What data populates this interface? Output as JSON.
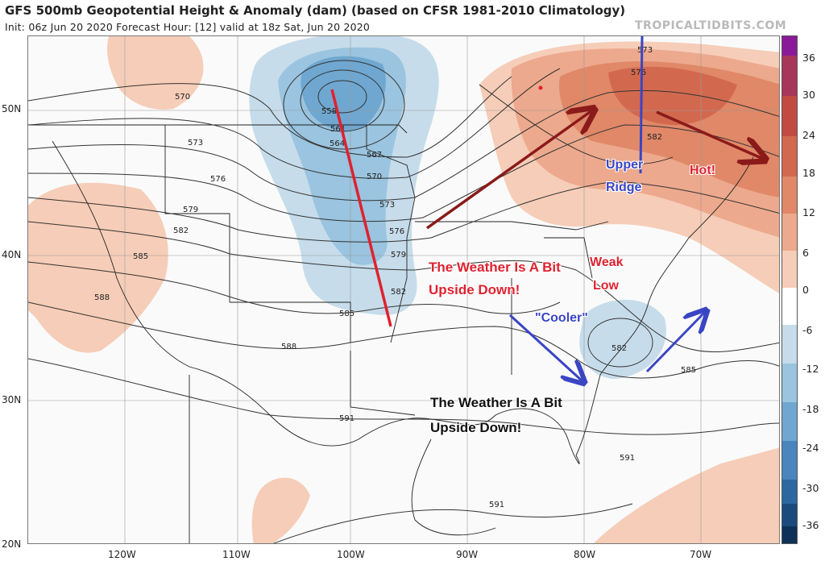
{
  "header": {
    "title": "GFS 500mb Geopotential Height & Anomaly (dam) (based on CFSR 1981-2010 Climatology)",
    "subtitle": "Init: 06z Jun 20 2020   Forecast Hour: [12]   valid at 18z Sat, Jun 20 2020",
    "site": "TROPICALTIDBITS.COM"
  },
  "axes": {
    "lat_labels": [
      "50N",
      "40N",
      "30N",
      "20N"
    ],
    "lon_labels": [
      "120W",
      "110W",
      "100W",
      "90W",
      "80W",
      "70W"
    ]
  },
  "colorbar": {
    "labels": [
      "36",
      "30",
      "24",
      "18",
      "12",
      "6",
      "0",
      "-6",
      "-12",
      "-18",
      "-24",
      "-30",
      "-36"
    ],
    "colors": [
      "#8b1a9a",
      "#a8365a",
      "#c14a43",
      "#d2694f",
      "#e08868",
      "#eca98d",
      "#f6cdb8",
      "#ffffff",
      "#c6dcea",
      "#9ac4df",
      "#6fa7d0",
      "#4a86bd",
      "#2c679f",
      "#1a4b7c",
      "#0e3157"
    ]
  },
  "contour_labels": [
    "570",
    "573",
    "576",
    "579",
    "582",
    "585",
    "588",
    "591",
    "558",
    "561",
    "564",
    "567",
    "570",
    "573",
    "576",
    "579",
    "582",
    "585",
    "588",
    "582",
    "585",
    "573",
    "576",
    "582",
    "591",
    "591"
  ],
  "annotations": {
    "weather_red_1": "The Weather Is A Bit",
    "weather_red_2": "Upside Down!",
    "weak_1": "Weak",
    "weak_2": "Low",
    "cooler": "\"Cooler\"",
    "upper_1": "Upper",
    "upper_2": "Ridge",
    "hot": "Hot!",
    "weather_black_1": "The Weather Is A Bit",
    "weather_black_2": "Upside Down!"
  },
  "colors": {
    "red_arrow": "#e0212f",
    "dark_red_arrow": "#8b1a1a",
    "blue_arrow": "#3a45c4",
    "negative_anomaly": "#9ac4df",
    "positive_anomaly": "#eca98d"
  }
}
